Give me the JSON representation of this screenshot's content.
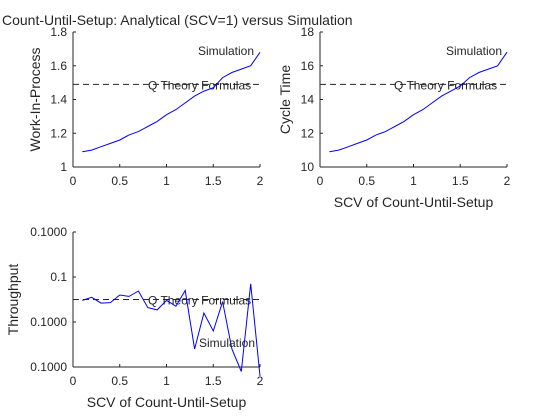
{
  "title": "Count-Until-Setup:  Analytical (SCV=1) versus Simulation",
  "chart_data": [
    {
      "type": "line",
      "ylabel": "Work-In-Process",
      "xlabel": "",
      "xlim": [
        0,
        2
      ],
      "ylim": [
        1,
        1.8
      ],
      "xticks": [
        0,
        0.5,
        1,
        1.5,
        2
      ],
      "xtick_labels": [
        "0",
        "0.5",
        "1",
        "1.5",
        "2"
      ],
      "yticks": [
        1,
        1.2,
        1.4,
        1.6,
        1.8
      ],
      "ytick_labels": [
        "1",
        "1.2",
        "1.4",
        "1.6",
        "1.8"
      ],
      "grid": false,
      "reference": {
        "label": "Q Theory Formulas",
        "value": 1.49
      },
      "series_label": "Simulation",
      "x": [
        0.1,
        0.2,
        0.3,
        0.4,
        0.5,
        0.6,
        0.7,
        0.8,
        0.9,
        1.0,
        1.1,
        1.2,
        1.3,
        1.4,
        1.5,
        1.6,
        1.7,
        1.8,
        1.9,
        2.0
      ],
      "values": [
        1.09,
        1.1,
        1.12,
        1.14,
        1.16,
        1.19,
        1.21,
        1.24,
        1.27,
        1.31,
        1.34,
        1.38,
        1.42,
        1.45,
        1.47,
        1.53,
        1.56,
        1.58,
        1.6,
        1.68
      ]
    },
    {
      "type": "line",
      "ylabel": "Cycle Time",
      "xlabel": "SCV of Count-Until-Setup",
      "xlim": [
        0,
        2
      ],
      "ylim": [
        10,
        18
      ],
      "xticks": [
        0,
        0.5,
        1,
        1.5,
        2
      ],
      "xtick_labels": [
        "0",
        "0.5",
        "1",
        "1.5",
        "2"
      ],
      "yticks": [
        10,
        12,
        14,
        16,
        18
      ],
      "ytick_labels": [
        "10",
        "12",
        "14",
        "16",
        "18"
      ],
      "grid": false,
      "reference": {
        "label": "Q Theory Formulas",
        "value": 14.9
      },
      "series_label": "Simulation",
      "x": [
        0.1,
        0.2,
        0.3,
        0.4,
        0.5,
        0.6,
        0.7,
        0.8,
        0.9,
        1.0,
        1.1,
        1.2,
        1.3,
        1.4,
        1.5,
        1.6,
        1.7,
        1.8,
        1.9,
        2.0
      ],
      "values": [
        10.9,
        11.0,
        11.2,
        11.4,
        11.6,
        11.9,
        12.1,
        12.4,
        12.7,
        13.1,
        13.4,
        13.8,
        14.2,
        14.5,
        14.8,
        15.3,
        15.6,
        15.8,
        16.0,
        16.8
      ]
    },
    {
      "type": "line",
      "ylabel": "Throughput",
      "xlabel": "SCV of Count-Until-Setup",
      "xlim": [
        0,
        2
      ],
      "ylim": [
        0.09985,
        0.10015
      ],
      "xticks": [
        0,
        0.5,
        1,
        1.5,
        2
      ],
      "xtick_labels": [
        "0",
        "0.5",
        "1",
        "1.5",
        "2"
      ],
      "yticks": [
        0.09985,
        0.09995,
        0.10005,
        0.10015
      ],
      "ytick_labels": [
        "0.1000",
        "0.1000",
        "0.1",
        "0.1000"
      ],
      "grid": false,
      "reference": {
        "label": "Q Theory Formulas",
        "value": 0.1
      },
      "series_label": "Simulation",
      "x": [
        0.1,
        0.2,
        0.3,
        0.4,
        0.5,
        0.6,
        0.7,
        0.8,
        0.9,
        1.0,
        1.1,
        1.2,
        1.3,
        1.4,
        1.5,
        1.6,
        1.7,
        1.8,
        1.9,
        2.0
      ],
      "values": [
        0.099998,
        0.100005,
        0.099992,
        0.099993,
        0.10001,
        0.100007,
        0.100019,
        0.099982,
        0.099977,
        0.099998,
        0.099985,
        0.10002,
        0.09989,
        0.09997,
        0.09993,
        0.099995,
        0.09989,
        0.09984,
        0.100035,
        0.09983
      ]
    }
  ]
}
